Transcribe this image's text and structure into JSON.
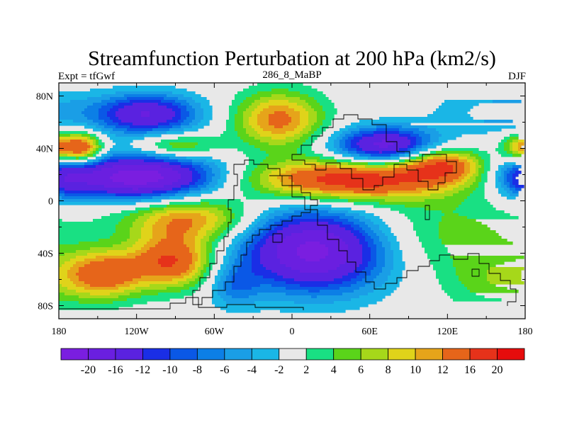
{
  "chart_data": {
    "type": "heatmap",
    "title": "Streamfunction Perturbation at 200 hPa (km2/s)",
    "left_label": "Expt = tfGwf",
    "center_label": "286_8_MaBP",
    "right_label": "DJF",
    "x_ticks": [
      {
        "value": -180,
        "label": "180"
      },
      {
        "value": -120,
        "label": "120W"
      },
      {
        "value": -60,
        "label": "60W"
      },
      {
        "value": 0,
        "label": "0"
      },
      {
        "value": 60,
        "label": "60E"
      },
      {
        "value": 120,
        "label": "120E"
      },
      {
        "value": 180,
        "label": "180"
      }
    ],
    "y_ticks": [
      {
        "value": 80,
        "label": "80N"
      },
      {
        "value": 40,
        "label": "40N"
      },
      {
        "value": 0,
        "label": "0"
      },
      {
        "value": -40,
        "label": "40S"
      },
      {
        "value": -80,
        "label": "80S"
      }
    ],
    "xlim": [
      -180,
      180
    ],
    "ylim": [
      -90,
      90
    ],
    "colorbar": {
      "labels": [
        "-20",
        "-16",
        "-12",
        "-10",
        "-8",
        "-6",
        "-4",
        "-2",
        "2",
        "4",
        "6",
        "8",
        "10",
        "12",
        "16",
        "20"
      ],
      "colors": [
        "#7a1ee0",
        "#6a1fe0",
        "#5a22e0",
        "#1a2ee6",
        "#0a58e6",
        "#0c7fe6",
        "#1a9ee6",
        "#1ab6e6",
        "#e8e8e8",
        "#19e083",
        "#5ad41a",
        "#a6d81a",
        "#e0d31a",
        "#e6a41a",
        "#e6651a",
        "#e6321a",
        "#e60c0c"
      ],
      "levels": [
        -20,
        -16,
        -12,
        -10,
        -8,
        -6,
        -4,
        -2,
        2,
        4,
        6,
        8,
        10,
        12,
        16,
        20
      ]
    },
    "features": [
      {
        "lon": -112,
        "lat": 66,
        "amp": -16,
        "slon": 28,
        "slat": 11
      },
      {
        "lon": -118,
        "lat": 18,
        "amp": -23,
        "slon": 42,
        "slat": 12
      },
      {
        "lon": -160,
        "lat": 40,
        "amp": 14,
        "slon": 10,
        "slat": 8
      },
      {
        "lon": 180,
        "lat": 40,
        "amp": 14,
        "slon": 12,
        "slat": 8
      },
      {
        "lon": -180,
        "lat": 18,
        "amp": -9,
        "slon": 16,
        "slat": 12
      },
      {
        "lon": -90,
        "lat": 42,
        "amp": 8,
        "slon": 22,
        "slat": 7
      },
      {
        "lon": -10,
        "lat": 62,
        "amp": 13,
        "slon": 24,
        "slat": 15
      },
      {
        "lon": 72,
        "lat": 42,
        "amp": -18,
        "slon": 28,
        "slat": 10
      },
      {
        "lon": 45,
        "lat": 16,
        "amp": 19,
        "slon": 55,
        "slat": 11
      },
      {
        "lon": 115,
        "lat": 28,
        "amp": 14,
        "slon": 22,
        "slat": 9
      },
      {
        "lon": -80,
        "lat": -14,
        "amp": 12,
        "slon": 34,
        "slat": 12
      },
      {
        "lon": -145,
        "lat": -56,
        "amp": 14,
        "slon": 22,
        "slat": 13
      },
      {
        "lon": -92,
        "lat": -46,
        "amp": 16,
        "slon": 22,
        "slat": 14
      },
      {
        "lon": 18,
        "lat": -38,
        "amp": -22,
        "slon": 40,
        "slat": 22
      },
      {
        "lon": -45,
        "lat": -65,
        "amp": -6,
        "slon": 14,
        "slat": 12
      },
      {
        "lon": 115,
        "lat": -25,
        "amp": 5,
        "slon": 55,
        "slat": 22
      },
      {
        "lon": 160,
        "lat": -62,
        "amp": 5,
        "slon": 30,
        "slat": 16
      },
      {
        "lon": 160,
        "lat": 68,
        "amp": -5,
        "slon": 35,
        "slat": 12
      }
    ]
  }
}
